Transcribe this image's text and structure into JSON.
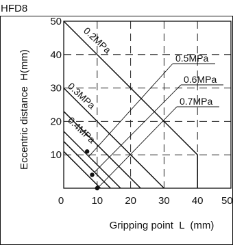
{
  "chart_data": {
    "type": "line",
    "title": "HFD8",
    "xlabel": "Gripping point  L  (mm)",
    "ylabel": "Eccentric distance  H(mm)",
    "xlim": [
      0,
      50
    ],
    "ylim": [
      0,
      50
    ],
    "xticks": [
      "0",
      "10",
      "20",
      "30",
      "40",
      "50"
    ],
    "yticks": [
      "10",
      "20",
      "30",
      "40",
      "50"
    ],
    "grid": true,
    "series": [
      {
        "name": "0.2MPa",
        "points": [
          [
            0,
            50
          ],
          [
            40,
            10
          ],
          [
            40,
            0
          ]
        ]
      },
      {
        "name": "0.3MPa",
        "points": [
          [
            0,
            30
          ],
          [
            30,
            0
          ]
        ]
      },
      {
        "name": "0.4MPa",
        "points": [
          [
            0,
            23
          ],
          [
            23,
            0
          ]
        ]
      },
      {
        "name": "0.5MPa",
        "points": [
          [
            0,
            17
          ],
          [
            17,
            0
          ]
        ]
      },
      {
        "name": "0.6MPa",
        "points": [
          [
            0,
            14
          ],
          [
            14,
            0
          ]
        ]
      },
      {
        "name": "0.7MPa",
        "points": [
          [
            0,
            11
          ],
          [
            11,
            0
          ]
        ]
      }
    ],
    "markers": [
      [
        7,
        11
      ],
      [
        8.5,
        4
      ],
      [
        10,
        0
      ]
    ]
  }
}
